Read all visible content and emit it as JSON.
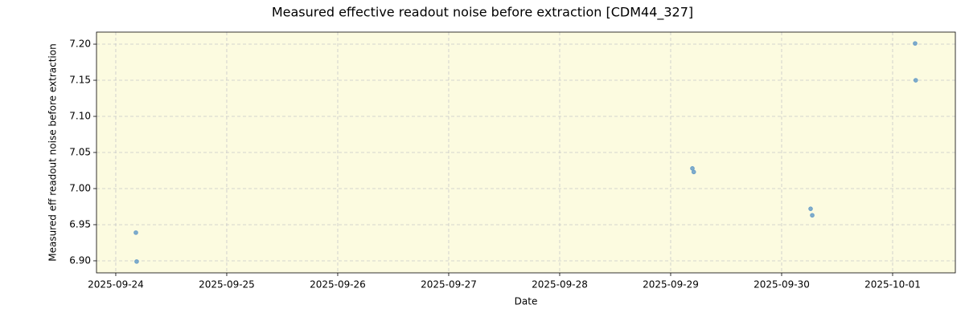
{
  "chart_data": {
    "type": "scatter",
    "title": "Measured effective readout noise before extraction [CDM44_327]",
    "x_label": "Date",
    "y_label": "Measured eff readout noise before extraction",
    "x": [
      "2025-09-24T04:21:00Z",
      "2025-09-24T04:31:00Z",
      "2025-09-29T04:42:00Z",
      "2025-09-29T05:00:00Z",
      "2025-09-30T06:16:00Z",
      "2025-09-30T06:37:00Z",
      "2025-10-01T04:52:00Z",
      "2025-10-01T05:00:00Z"
    ],
    "values": [
      6.939,
      6.899,
      7.028,
      7.023,
      6.972,
      6.963,
      7.201,
      7.15
    ],
    "color": "#6a9fc8",
    "background": "#fcfbe0",
    "xlim": [
      "2025-09-23T19:50:00Z",
      "2025-10-01T13:34:00Z"
    ],
    "xticks": [
      "2025-09-24",
      "2025-09-25",
      "2025-09-26",
      "2025-09-27",
      "2025-09-28",
      "2025-09-29",
      "2025-09-30",
      "2025-10-01"
    ],
    "ylim": [
      6.8833,
      7.2167
    ],
    "yticks": [
      {
        "value": 6.9,
        "label": "6.90"
      },
      6.95,
      {
        "value": 7.0,
        "label": "7.00"
      },
      7.05,
      {
        "value": 7.1,
        "label": "7.10"
      },
      7.15,
      {
        "value": 7.2,
        "label": "7.20"
      }
    ],
    "grid": true
  }
}
